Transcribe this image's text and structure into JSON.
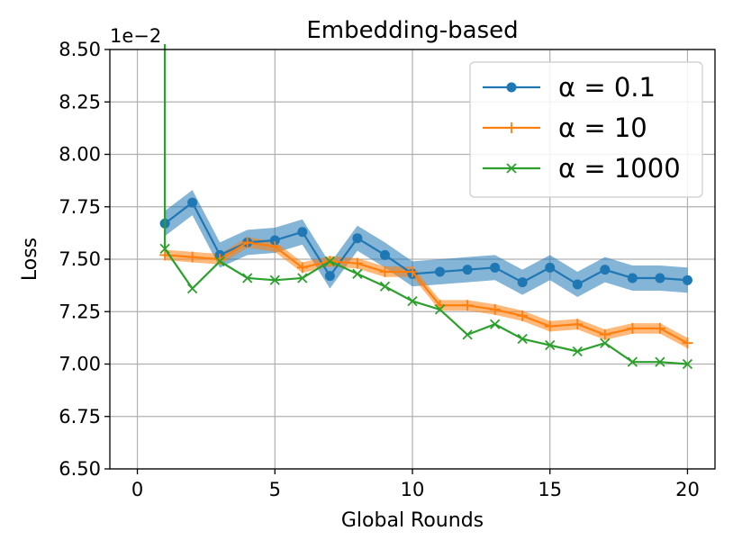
{
  "chart_data": {
    "type": "line",
    "title": "Embedding-based",
    "xlabel": "Global Rounds",
    "ylabel": "Loss",
    "offset_text": "1e−2",
    "xlim": [
      -1,
      21
    ],
    "ylim": [
      6.5,
      8.5
    ],
    "xticks": [
      0,
      5,
      10,
      15,
      20
    ],
    "xtick_labels": [
      "0",
      "5",
      "10",
      "15",
      "20"
    ],
    "yticks": [
      6.5,
      6.75,
      7.0,
      7.25,
      7.5,
      7.75,
      8.0,
      8.25,
      8.5
    ],
    "ytick_labels": [
      "6.50",
      "6.75",
      "7.00",
      "7.25",
      "7.50",
      "7.75",
      "8.00",
      "8.25",
      "8.50"
    ],
    "grid": true,
    "legend_position": "top-right",
    "x": [
      1,
      2,
      3,
      4,
      5,
      6,
      7,
      8,
      9,
      10,
      11,
      12,
      13,
      14,
      15,
      16,
      17,
      18,
      19,
      20
    ],
    "series": [
      {
        "name": "α = 0.1",
        "color": "#1f77b4",
        "marker": "circle",
        "values": [
          7.67,
          7.77,
          7.52,
          7.58,
          7.59,
          7.63,
          7.42,
          7.6,
          7.52,
          7.43,
          7.44,
          7.45,
          7.46,
          7.39,
          7.46,
          7.38,
          7.45,
          7.41,
          7.41,
          7.4
        ],
        "band": 0.06
      },
      {
        "name": "α = 10",
        "color": "#ff7f0e",
        "marker": "plus",
        "values": [
          7.52,
          7.51,
          7.5,
          7.58,
          7.56,
          7.46,
          7.49,
          7.48,
          7.44,
          7.44,
          7.28,
          7.28,
          7.26,
          7.23,
          7.18,
          7.19,
          7.14,
          7.17,
          7.17,
          7.1
        ],
        "band": 0.025
      },
      {
        "name": "α = 1000",
        "color": "#2ca02c",
        "marker": "x",
        "values": [
          7.55,
          7.36,
          7.49,
          7.41,
          7.4,
          7.41,
          7.49,
          7.43,
          7.37,
          7.3,
          7.26,
          7.14,
          7.19,
          7.12,
          7.09,
          7.06,
          7.1,
          7.01,
          7.01,
          7.0
        ],
        "band": 0,
        "start_value": 8.5
      }
    ]
  }
}
